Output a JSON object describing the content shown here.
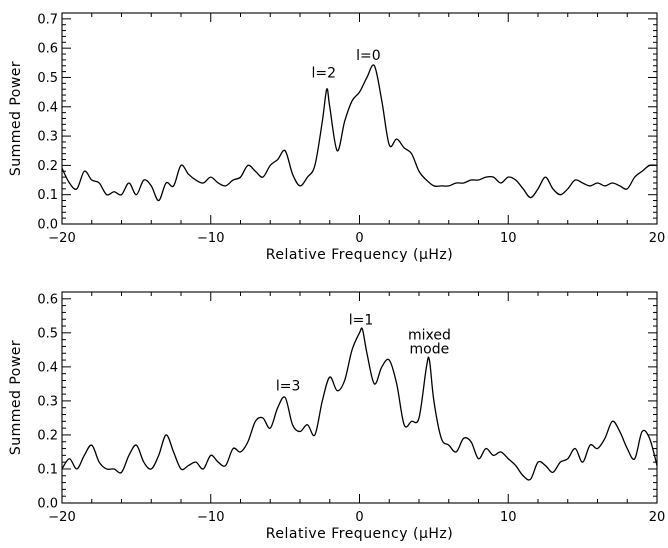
{
  "chart_data": [
    {
      "type": "line",
      "xlabel": "Relative Frequency (μHz)",
      "ylabel": "Summed Power",
      "xlim": [
        -20,
        20
      ],
      "ylim": [
        0.0,
        0.72
      ],
      "xticks": [
        -20,
        -10,
        0,
        10,
        20
      ],
      "xtick_labels": [
        "−20",
        "−10",
        "0",
        "10",
        "20"
      ],
      "yticks": [
        0.0,
        0.1,
        0.2,
        0.3,
        0.4,
        0.5,
        0.6,
        0.7
      ],
      "ytick_labels": [
        "0.0",
        "0.1",
        "0.2",
        "0.3",
        "0.4",
        "0.5",
        "0.6",
        "0.7"
      ],
      "grid": false,
      "annotations": [
        {
          "text": "l=2",
          "x": -2.4,
          "y": 0.5
        },
        {
          "text": "l=0",
          "x": 0.6,
          "y": 0.56
        }
      ],
      "series": [
        {
          "x": [
            -20,
            -19.5,
            -19,
            -18.5,
            -18,
            -17.5,
            -17,
            -16.5,
            -16,
            -15.5,
            -15,
            -14.5,
            -14,
            -13.5,
            -13,
            -12.5,
            -12,
            -11.5,
            -11,
            -10.5,
            -10,
            -9.5,
            -9,
            -8.5,
            -8,
            -7.5,
            -7,
            -6.5,
            -6,
            -5.5,
            -5,
            -4.5,
            -4,
            -3.5,
            -3,
            -2.5,
            -2.2,
            -2,
            -1.5,
            -1,
            -0.5,
            0,
            0.5,
            1,
            1.5,
            2,
            2.5,
            3,
            3.5,
            4,
            4.5,
            5,
            5.5,
            6,
            6.5,
            7,
            7.5,
            8,
            8.5,
            9,
            9.5,
            10,
            10.5,
            11,
            11.5,
            12,
            12.5,
            13,
            13.5,
            14,
            14.5,
            15,
            15.5,
            16,
            16.5,
            17,
            17.5,
            18,
            18.5,
            19,
            19.5,
            20
          ],
          "y": [
            0.19,
            0.14,
            0.12,
            0.18,
            0.15,
            0.14,
            0.1,
            0.11,
            0.1,
            0.14,
            0.1,
            0.15,
            0.13,
            0.08,
            0.14,
            0.13,
            0.2,
            0.17,
            0.15,
            0.14,
            0.16,
            0.14,
            0.13,
            0.15,
            0.16,
            0.2,
            0.18,
            0.16,
            0.2,
            0.22,
            0.25,
            0.17,
            0.13,
            0.16,
            0.2,
            0.35,
            0.46,
            0.4,
            0.25,
            0.35,
            0.42,
            0.45,
            0.5,
            0.54,
            0.42,
            0.27,
            0.29,
            0.26,
            0.24,
            0.18,
            0.15,
            0.13,
            0.13,
            0.13,
            0.14,
            0.14,
            0.15,
            0.15,
            0.16,
            0.16,
            0.14,
            0.16,
            0.15,
            0.12,
            0.09,
            0.12,
            0.16,
            0.12,
            0.1,
            0.12,
            0.15,
            0.14,
            0.13,
            0.14,
            0.13,
            0.14,
            0.13,
            0.12,
            0.16,
            0.18,
            0.2,
            0.2
          ]
        }
      ]
    },
    {
      "type": "line",
      "xlabel": "Relative Frequency (μHz)",
      "ylabel": "Summed Power",
      "xlim": [
        -20,
        20
      ],
      "ylim": [
        0.0,
        0.62
      ],
      "xticks": [
        -20,
        -10,
        0,
        10,
        20
      ],
      "xtick_labels": [
        "−20",
        "−10",
        "0",
        "10",
        "20"
      ],
      "yticks": [
        0.0,
        0.1,
        0.2,
        0.3,
        0.4,
        0.5,
        0.6
      ],
      "ytick_labels": [
        "0.0",
        "0.1",
        "0.2",
        "0.3",
        "0.4",
        "0.5",
        "0.6"
      ],
      "grid": false,
      "annotations": [
        {
          "text": "l=3",
          "x": -4.8,
          "y": 0.33
        },
        {
          "text": "l=1",
          "x": 0.1,
          "y": 0.525
        },
        {
          "text": "mixed",
          "x": 4.7,
          "y": 0.48
        },
        {
          "text": "mode",
          "x": 4.7,
          "y": 0.44
        }
      ],
      "series": [
        {
          "x": [
            -20,
            -19.5,
            -19,
            -18.5,
            -18,
            -17.5,
            -17,
            -16.5,
            -16,
            -15.5,
            -15,
            -14.5,
            -14,
            -13.5,
            -13,
            -12.5,
            -12,
            -11.5,
            -11,
            -10.5,
            -10,
            -9.5,
            -9,
            -8.5,
            -8,
            -7.5,
            -7,
            -6.5,
            -6,
            -5.5,
            -5,
            -4.5,
            -4,
            -3.5,
            -3,
            -2.5,
            -2,
            -1.5,
            -1,
            -0.5,
            0,
            0.2,
            0.5,
            1,
            1.5,
            2,
            2.5,
            3,
            3.5,
            4,
            4.5,
            4.7,
            5,
            5.5,
            6,
            6.5,
            7,
            7.5,
            8,
            8.5,
            9,
            9.5,
            10,
            10.5,
            11,
            11.5,
            12,
            12.5,
            13,
            13.5,
            14,
            14.5,
            15,
            15.5,
            16,
            16.5,
            17,
            17.5,
            18,
            18.5,
            19,
            19.5,
            20
          ],
          "y": [
            0.1,
            0.13,
            0.1,
            0.14,
            0.17,
            0.12,
            0.1,
            0.1,
            0.09,
            0.14,
            0.17,
            0.12,
            0.1,
            0.14,
            0.2,
            0.15,
            0.1,
            0.11,
            0.12,
            0.1,
            0.14,
            0.12,
            0.11,
            0.16,
            0.15,
            0.18,
            0.24,
            0.25,
            0.22,
            0.28,
            0.31,
            0.23,
            0.21,
            0.23,
            0.2,
            0.3,
            0.37,
            0.33,
            0.36,
            0.45,
            0.5,
            0.51,
            0.44,
            0.35,
            0.4,
            0.42,
            0.35,
            0.23,
            0.24,
            0.25,
            0.4,
            0.42,
            0.3,
            0.19,
            0.17,
            0.15,
            0.19,
            0.18,
            0.13,
            0.16,
            0.14,
            0.15,
            0.13,
            0.11,
            0.08,
            0.07,
            0.12,
            0.11,
            0.09,
            0.12,
            0.13,
            0.16,
            0.12,
            0.17,
            0.16,
            0.19,
            0.24,
            0.21,
            0.16,
            0.13,
            0.21,
            0.19,
            0.11
          ]
        }
      ]
    }
  ]
}
